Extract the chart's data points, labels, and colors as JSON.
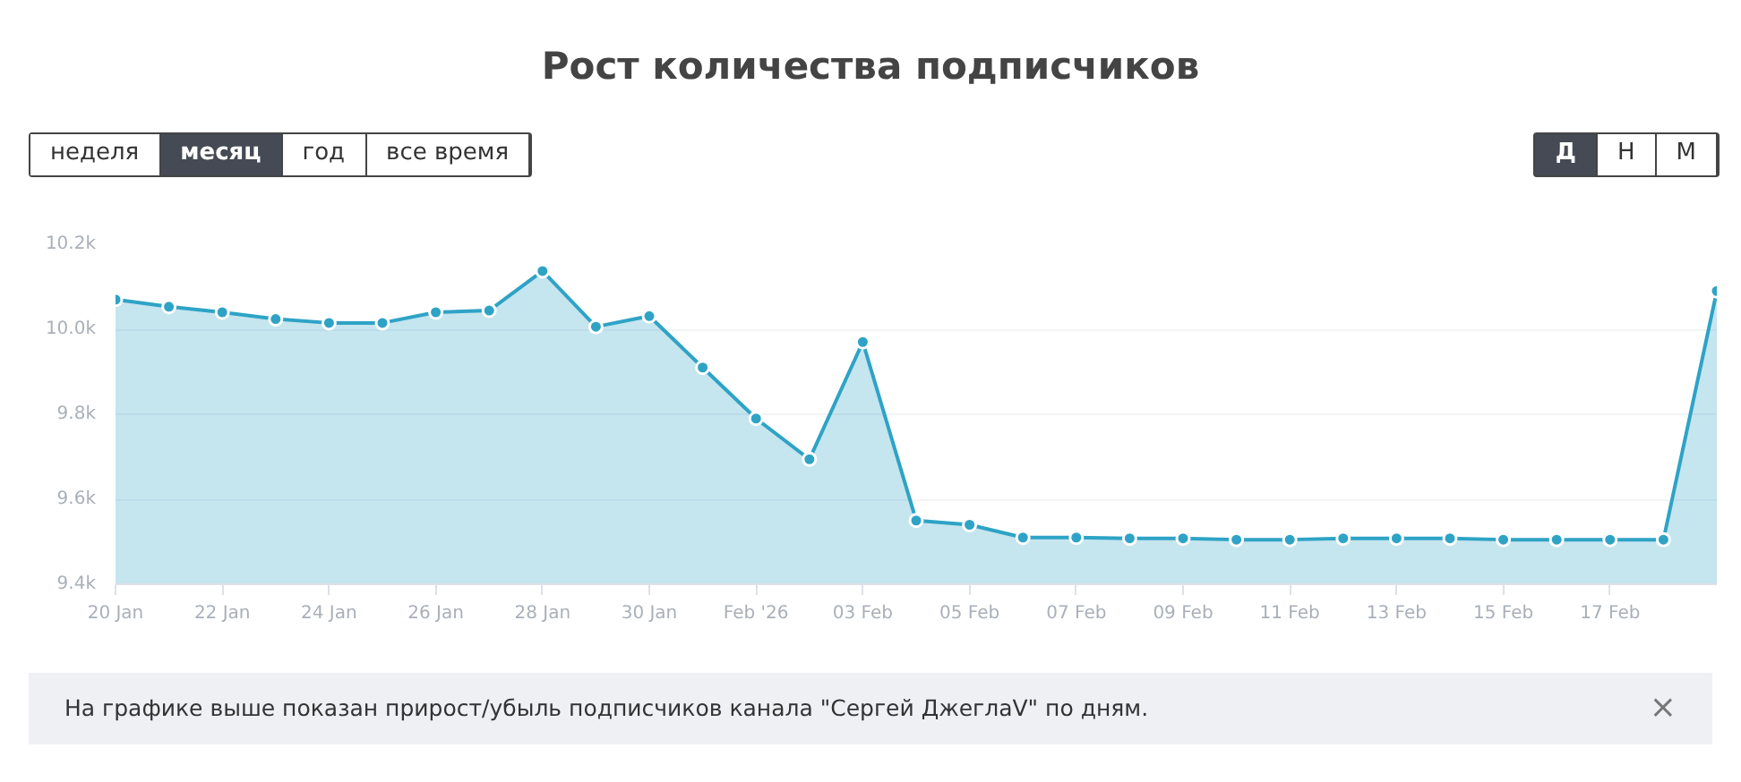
{
  "chart_data": {
    "type": "area",
    "title": "Рост количества подписчиков",
    "x": [
      "2026-01-20",
      "2026-01-21",
      "2026-01-22",
      "2026-01-23",
      "2026-01-24",
      "2026-01-25",
      "2026-01-26",
      "2026-01-27",
      "2026-01-28",
      "2026-01-29",
      "2026-01-30",
      "2026-01-31",
      "2026-02-01",
      "2026-02-02",
      "2026-02-03",
      "2026-02-04",
      "2026-02-05",
      "2026-02-06",
      "2026-02-07",
      "2026-02-08",
      "2026-02-09",
      "2026-02-10",
      "2026-02-11",
      "2026-02-12",
      "2026-02-13",
      "2026-02-14",
      "2026-02-15",
      "2026-02-16",
      "2026-02-17",
      "2026-02-18",
      "2026-02-19"
    ],
    "series": [
      {
        "color": "#2ea3c6",
        "values": [
          10070,
          10053,
          10040,
          10024,
          10015,
          10015,
          10040,
          10044,
          10137,
          10006,
          10031,
          9910,
          9790,
          9694,
          9970,
          9550,
          9540,
          9510,
          9510,
          9508,
          9508,
          9505,
          9505,
          9508,
          9508,
          9508,
          9505,
          9505,
          9505,
          9505,
          10090
        ]
      }
    ],
    "xlim": [
      "2026-01-20",
      "2026-02-19"
    ],
    "xticks": [
      {
        "value": "2026-01-20",
        "label": "20 Jan"
      },
      {
        "value": "2026-01-22",
        "label": "22 Jan"
      },
      {
        "value": "2026-01-24",
        "label": "24 Jan"
      },
      {
        "value": "2026-01-26",
        "label": "26 Jan"
      },
      {
        "value": "2026-01-28",
        "label": "28 Jan"
      },
      {
        "value": "2026-01-30",
        "label": "30 Jan"
      },
      {
        "value": "2026-02-01",
        "label": "Feb '26"
      },
      {
        "value": "2026-02-03",
        "label": "03 Feb"
      },
      {
        "value": "2026-02-05",
        "label": "05 Feb"
      },
      {
        "value": "2026-02-07",
        "label": "07 Feb"
      },
      {
        "value": "2026-02-09",
        "label": "09 Feb"
      },
      {
        "value": "2026-02-11",
        "label": "11 Feb"
      },
      {
        "value": "2026-02-13",
        "label": "13 Feb"
      },
      {
        "value": "2026-02-15",
        "label": "15 Feb"
      },
      {
        "value": "2026-02-17",
        "label": "17 Feb"
      }
    ],
    "ylim": [
      9400,
      10200
    ],
    "yticks": [
      {
        "value": 9400,
        "label": "9.4k"
      },
      {
        "value": 9600,
        "label": "9.6k"
      },
      {
        "value": 9800,
        "label": "9.8k"
      },
      {
        "value": 10000,
        "label": "10.0k"
      },
      {
        "value": 10200,
        "label": "10.2k"
      }
    ],
    "grid": "y",
    "marker": "circle",
    "line_style": "solid",
    "annotations": [
      "неделя",
      "месяц",
      "год",
      "все время",
      "Д",
      "Н",
      "М",
      "На графике выше показан прирост/убыль подписчиков канала \"Сергей ДжеглаV\" по дням.",
      "×"
    ]
  }
}
